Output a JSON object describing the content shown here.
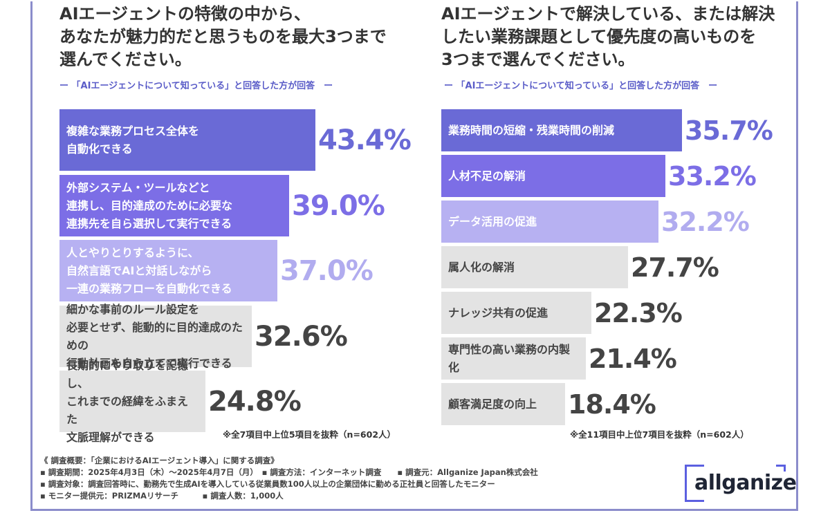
{
  "colors": {
    "rank1": "#6a6ad6",
    "rank2": "#7c6ee6",
    "rank3": "#b7b1f2",
    "other": "#e3e3e3",
    "value_rank1": "#6a6ad6",
    "value_rank2": "#7c6ee6",
    "value_rank3": "#b1acef",
    "value_other": "#444444",
    "label_light": "#ffffff",
    "label_dark": "#444444",
    "frame": "#8b8ccb",
    "accent": "#5a5cc8"
  },
  "left": {
    "title": "AIエージェントの特徴の中から、\nあなたが魅力的だと思うものを最大3つまで\n選んでください。",
    "subhead": "ー 「AIエージェントについて知っている」と回答した方が回答　ー",
    "note": "※全7項目中上位5項目を抜粋（n=602人）"
  },
  "right": {
    "title": "AIエージェントで解決している、または解決\nしたい業務課題として優先度の高いものを\n3つまで選んでください。",
    "subhead": "ー 「AIエージェントについて知っている」と回答した方が回答　ー",
    "note": "※全11項目中上位7項目を抜粋（n=602人）"
  },
  "chart_data": [
    {
      "type": "bar",
      "orientation": "horizontal",
      "title": "AIエージェントの特徴の中から、あなたが魅力的だと思うものを最大3つまで選んでください。",
      "unit": "%",
      "categories": [
        "複雑な業務プロセス全体を\n自動化できる",
        "外部システム・ツールなどと\n連携し、目的達成のために必要な\n連携先を自ら選択して実行できる",
        "人とやりとりするように、\n自然言語でAIと対話しながら\n一連の業務フローを自動化できる",
        "細かな事前のルール設定を\n必要とせず、能動的に目的達成のための\n行動計画を自ら立てて実行できる",
        "長期的にやり取りを記憶し、\nこれまでの経緯をふまえた\n文脈理解ができる"
      ],
      "values": [
        43.4,
        39.0,
        37.0,
        32.6,
        24.8
      ],
      "value_labels": [
        "43.4%",
        "39.0%",
        "37.0%",
        "32.6%",
        "24.8%"
      ],
      "xlim": [
        0,
        43.4
      ],
      "grid": false,
      "legend": "none"
    },
    {
      "type": "bar",
      "orientation": "horizontal",
      "title": "AIエージェントで解決している、または解決したい業務課題として優先度の高いものを3つまで選んでください。",
      "unit": "%",
      "categories": [
        "業務時間の短縮・残業時間の削減",
        "人材不足の解消",
        "データ活用の促進",
        "属人化の解消",
        "ナレッジ共有の促進",
        "専門性の高い業務の内製化",
        "顧客満足度の向上"
      ],
      "values": [
        35.7,
        33.2,
        32.2,
        27.7,
        22.3,
        21.4,
        18.4
      ],
      "value_labels": [
        "35.7%",
        "33.2%",
        "32.2%",
        "27.7%",
        "22.3%",
        "21.4%",
        "18.4%"
      ],
      "xlim": [
        0,
        35.7
      ],
      "grid": false,
      "legend": "none"
    }
  ],
  "footer": {
    "lines": [
      "《 調査概要：「企業におけるAIエージェント導入」に関する調査》",
      "▪ 調査期間：2025年4月3日（木）～2025年4月7日（月）　▪ 調査方法：インターネット調査　　▪ 調査元：Allganize Japan株式会社",
      "▪ 調査対象：調査回答時に、勤務先で生成AIを導入している従業員数100人以上の企業団体に勤める正社員と回答したモニター",
      "▪ モニター提供元：PRIZMAリサーチ　　　▪ 調査人数：1,000人"
    ]
  },
  "logo": {
    "text": "allganize"
  }
}
